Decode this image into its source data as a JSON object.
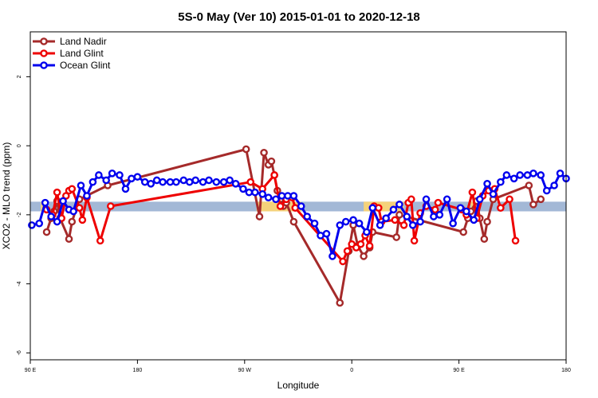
{
  "chart_data": {
    "type": "line",
    "title": "5S-0 May (Ver 10)   2015-01-01 to 2020-12-18",
    "xlabel": "Longitude",
    "ylabel": "XCO2 - MLO trend (ppm)",
    "xlim": [
      90,
      450
    ],
    "ylim": [
      -6.2,
      3.3
    ],
    "x_ticks": [
      {
        "value": 90,
        "label": "90 E"
      },
      {
        "value": 162,
        "label": "180"
      },
      {
        "value": 234,
        "label": "90 W"
      },
      {
        "value": 306,
        "label": "0"
      },
      {
        "value": 378,
        "label": "90 E"
      },
      {
        "value": 450,
        "label": "180"
      }
    ],
    "y_ticks": [
      {
        "value": 2,
        "label": "2"
      },
      {
        "value": 0,
        "label": "0"
      },
      {
        "value": -2,
        "label": "-2"
      },
      {
        "value": -4,
        "label": "-4"
      },
      {
        "value": -6,
        "label": "-6"
      }
    ],
    "band": {
      "y_min": -1.9,
      "y_max": -1.62,
      "color": "#a3b8d6",
      "highlights": [
        {
          "x_start": 97,
          "x_end": 100,
          "color": "#f5d27a"
        },
        {
          "x_start": 242,
          "x_end": 272,
          "color": "#f5d27a"
        },
        {
          "x_start": 314,
          "x_end": 341,
          "color": "#f5d27a"
        },
        {
          "x_start": 386,
          "x_end": 390,
          "color": "#f5d27a"
        }
      ]
    },
    "legend_position": "top-left",
    "series": [
      {
        "name": "Land Nadir",
        "color": "#a52a2a",
        "x": [
          101,
          104,
          106,
          108,
          110,
          116,
          118,
          123,
          142,
          235,
          244,
          247,
          250,
          252,
          254,
          256,
          258,
          260,
          262,
          267,
          298,
          304,
          307,
          310,
          314,
          318,
          320,
          336,
          338,
          381,
          384,
          386,
          390,
          392,
          395,
          397,
          401,
          425,
          428,
          433
        ],
        "y": [
          -2.5,
          -2.1,
          -1.9,
          -1.6,
          -2.1,
          -2.7,
          -2.2,
          -1.55,
          -1.15,
          -0.1,
          -2.05,
          -0.2,
          -0.55,
          -0.45,
          -0.85,
          -1.3,
          -1.55,
          -1.75,
          -1.65,
          -2.2,
          -4.55,
          -3.05,
          -2.3,
          -2.9,
          -3.2,
          -2.95,
          -2.5,
          -2.65,
          -2.0,
          -2.5,
          -2.1,
          -1.9,
          -1.6,
          -2.1,
          -2.7,
          -2.2,
          -1.55,
          -1.15,
          -1.7,
          -1.55
        ]
      },
      {
        "name": "Land Glint",
        "color": "#ee0000",
        "x": [
          101,
          105,
          108,
          111,
          114,
          116,
          118,
          123,
          125,
          128,
          137,
          144,
          238,
          246,
          254,
          258,
          262,
          266,
          268,
          300,
          303,
          306,
          309,
          312,
          315,
          318,
          321,
          324,
          326,
          335,
          341,
          344,
          346,
          348,
          352,
          356,
          362,
          364,
          380,
          383,
          387,
          390,
          394,
          398,
          402,
          406,
          412,
          416
        ],
        "y": [
          -1.85,
          -2.0,
          -1.35,
          -2.1,
          -1.45,
          -1.3,
          -1.25,
          -1.8,
          -2.15,
          -1.5,
          -2.75,
          -1.75,
          -1.05,
          -1.25,
          -0.85,
          -1.75,
          -1.55,
          -1.5,
          -1.8,
          -3.35,
          -3.05,
          -2.85,
          -2.95,
          -2.85,
          -2.6,
          -2.9,
          -1.75,
          -1.8,
          -2.2,
          -2.15,
          -2.3,
          -1.65,
          -1.55,
          -2.75,
          -1.95,
          -1.75,
          -1.85,
          -1.65,
          -1.85,
          -2.0,
          -1.35,
          -2.1,
          -1.45,
          -1.3,
          -1.25,
          -1.8,
          -1.55,
          -2.75
        ]
      },
      {
        "name": "Ocean Glint",
        "color": "#0000ee",
        "x": [
          91,
          96,
          100,
          104,
          108,
          112,
          116,
          119,
          124,
          128,
          132,
          136,
          141,
          145,
          150,
          154,
          158,
          162,
          167,
          171,
          175,
          179,
          184,
          188,
          193,
          197,
          201,
          206,
          210,
          215,
          220,
          224,
          228,
          233,
          237,
          241,
          246,
          250,
          255,
          259,
          263,
          267,
          272,
          276,
          281,
          285,
          289,
          293,
          298,
          302,
          307,
          311,
          316,
          320,
          325,
          329,
          334,
          338,
          343,
          347,
          352,
          356,
          361,
          365,
          370,
          374,
          379,
          383,
          388,
          392,
          397,
          401,
          406,
          410,
          415,
          419,
          424,
          428,
          433,
          437,
          442,
          446,
          450
        ],
        "y": [
          -2.3,
          -2.25,
          -1.65,
          -2.05,
          -2.2,
          -1.6,
          -1.85,
          -1.9,
          -1.15,
          -1.45,
          -1.05,
          -0.85,
          -1.0,
          -0.8,
          -0.85,
          -1.25,
          -0.95,
          -0.9,
          -1.05,
          -1.1,
          -1.0,
          -1.05,
          -1.05,
          -1.05,
          -1.0,
          -1.05,
          -1.0,
          -1.05,
          -1.0,
          -1.05,
          -1.05,
          -1.0,
          -1.1,
          -1.25,
          -1.35,
          -1.35,
          -1.4,
          -1.5,
          -1.55,
          -1.45,
          -1.45,
          -1.45,
          -1.75,
          -2.05,
          -2.25,
          -2.6,
          -2.55,
          -3.2,
          -2.3,
          -2.2,
          -2.15,
          -2.25,
          -2.5,
          -1.8,
          -2.3,
          -2.1,
          -1.85,
          -1.7,
          -2.05,
          -2.3,
          -2.2,
          -1.55,
          -2.05,
          -2.0,
          -1.55,
          -2.25,
          -1.8,
          -1.9,
          -2.15,
          -1.55,
          -1.1,
          -1.4,
          -1.05,
          -0.85,
          -0.95,
          -0.85,
          -0.85,
          -0.8,
          -0.85,
          -1.3,
          -1.15,
          -0.8,
          -0.95
        ]
      }
    ]
  }
}
